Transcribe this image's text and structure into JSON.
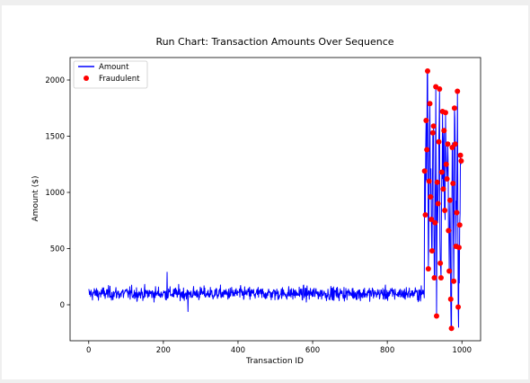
{
  "chart_data": {
    "type": "line",
    "title": "Run Chart: Transaction Amounts Over Sequence",
    "xlabel": "Transaction ID",
    "ylabel": "Amount ($)",
    "xlim": [
      -50,
      1050
    ],
    "ylim": [
      -320,
      2200
    ],
    "xticks": [
      0,
      200,
      400,
      600,
      800,
      1000
    ],
    "yticks": [
      0,
      500,
      1000,
      1500,
      2000
    ],
    "grid": false,
    "legend_position": "upper-left",
    "series": [
      {
        "name": "Amount",
        "kind": "line",
        "color": "#0000ff",
        "description": "Transactions 0-899 fluctuate around 100 (roughly 0 to 260); transactions 900-999 are highly volatile",
        "normal": {
          "x_start": 0,
          "x_end": 899,
          "mean": 100,
          "noise_sd": 40,
          "min_seen": -60,
          "max_seen": 290
        }
      },
      {
        "name": "Fraudulent",
        "kind": "scatter",
        "color": "#ff0000",
        "x": [
          900,
          902,
          904,
          906,
          908,
          910,
          912,
          914,
          916,
          918,
          920,
          922,
          924,
          926,
          928,
          930,
          932,
          934,
          936,
          938,
          940,
          942,
          944,
          946,
          948,
          950,
          952,
          954,
          956,
          958,
          960,
          962,
          964,
          966,
          968,
          970,
          972,
          974,
          976,
          978,
          980,
          982,
          984,
          986,
          988,
          990,
          992,
          994,
          996,
          998
        ],
        "y": [
          1190,
          800,
          1640,
          1380,
          2080,
          320,
          1100,
          1790,
          960,
          760,
          480,
          1530,
          1590,
          240,
          730,
          1940,
          -100,
          1090,
          900,
          1450,
          1920,
          370,
          240,
          1180,
          1720,
          1030,
          1550,
          840,
          1710,
          1250,
          1120,
          1430,
          660,
          300,
          930,
          50,
          -210,
          1400,
          1080,
          210,
          1750,
          1430,
          520,
          820,
          1900,
          -20,
          510,
          710,
          1330,
          1280
        ]
      }
    ]
  }
}
